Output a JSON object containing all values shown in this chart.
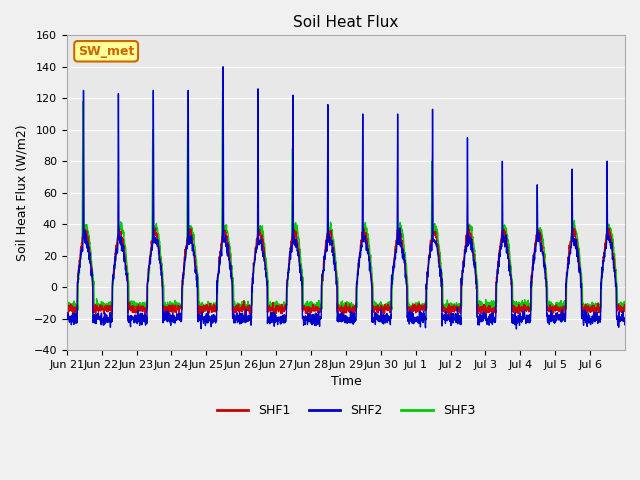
{
  "title": "Soil Heat Flux",
  "xlabel": "Time",
  "ylabel": "Soil Heat Flux (W/m2)",
  "ylim": [
    -40,
    160
  ],
  "yticks": [
    -40,
    -20,
    0,
    20,
    40,
    60,
    80,
    100,
    120,
    140,
    160
  ],
  "xtick_labels": [
    "Jun 21",
    "Jun 22",
    "Jun 23",
    "Jun 24",
    "Jun 25",
    "Jun 26",
    "Jun 27",
    "Jun 28",
    "Jun 29",
    "Jun 30",
    "Jul 1",
    "Jul 2",
    "Jul 3",
    "Jul 4",
    "Jul 5",
    "Jul 6"
  ],
  "colors": {
    "SHF1": "#cc0000",
    "SHF2": "#0000cc",
    "SHF3": "#00cc00"
  },
  "line_widths": {
    "SHF1": 1.0,
    "SHF2": 1.0,
    "SHF3": 1.0
  },
  "plot_bg_color": "#e8e8e8",
  "fig_bg_color": "#f0f0f0",
  "legend_label": "SW_met",
  "legend_bg": "#ffff99",
  "legend_border": "#cc6600",
  "grid_color": "#ffffff",
  "n_days": 16
}
